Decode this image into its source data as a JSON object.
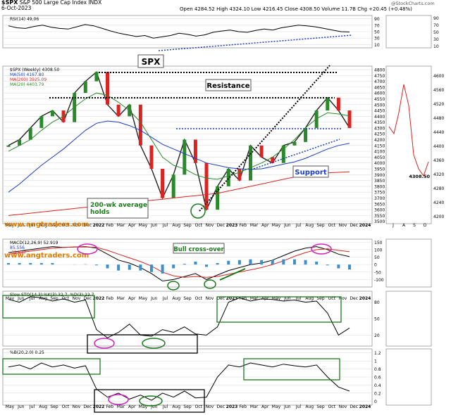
{
  "header": {
    "symbol": "$SPX",
    "name": "S&P 500 Large Cap Index",
    "exchange": "INDX",
    "date": "6-Oct-2023",
    "open": "Open 4284.52",
    "high": "High 4324.10",
    "low": "Low 4216.45",
    "close": "Close 4308.50",
    "volume": "Volume 11.7B",
    "change": "Chg +20.45 (+0.48%)",
    "watermark": "@StockCharts.com"
  },
  "annotations": {
    "spx": "SPX",
    "resistance": "Resistance",
    "support": "Support",
    "hold": "200-wk average\nholds",
    "bull": "Bull cross-over",
    "site": "www.angtraders.com",
    "site2": "www.angtraders.com"
  },
  "chart_data": [
    {
      "type": "line",
      "panel": "RSI",
      "legend": "RSI(14) 49.06",
      "y_ticks": [
        90,
        70,
        50,
        30,
        10
      ],
      "ylim": [
        0,
        100
      ],
      "series": [
        {
          "name": "RSI(14)",
          "values": [
            68,
            62,
            60,
            66,
            70,
            64,
            60,
            58,
            65,
            72,
            68,
            60,
            52,
            45,
            40,
            35,
            38,
            30,
            34,
            38,
            45,
            42,
            36,
            40,
            48,
            52,
            55,
            50,
            48,
            54,
            58,
            55,
            62,
            66,
            70,
            68,
            65,
            60,
            55,
            50,
            49
          ]
        }
      ]
    },
    {
      "type": "line",
      "panel": "Price (Weekly)",
      "legend": [
        "$SPX (Weekly) 4308.50",
        "MA(50) 4167.80",
        "MA(200) 3925.09",
        "MA(20) 4403.79"
      ],
      "y_ticks": [
        4800,
        4750,
        4700,
        4650,
        4600,
        4550,
        4500,
        4450,
        4400,
        4350,
        4300,
        4250,
        4200,
        4150,
        4100,
        4050,
        4000,
        3950,
        3900,
        3850,
        3800,
        3750,
        3700,
        3650,
        3600,
        3550,
        3500
      ],
      "ylim": [
        3480,
        4830
      ],
      "x_labels": [
        "May",
        "Jun",
        "Jul",
        "Aug",
        "Sep",
        "Oct",
        "Nov",
        "Dec",
        "2022",
        "Feb",
        "Mar",
        "Apr",
        "May",
        "Jun",
        "Jul",
        "Aug",
        "Sep",
        "Oct",
        "Nov",
        "Dec",
        "2023",
        "Feb",
        "Mar",
        "Apr",
        "May",
        "Jun",
        "Jul",
        "Aug",
        "Sep",
        "Oct",
        "Nov",
        "Dec",
        "2024"
      ],
      "series": [
        {
          "name": "$SPX",
          "values": [
            4150,
            4200,
            4300,
            4400,
            4450,
            4350,
            4600,
            4700,
            4780,
            4500,
            4400,
            4500,
            4150,
            3950,
            3700,
            3900,
            4200,
            4000,
            3600,
            3800,
            3950,
            3850,
            4150,
            4050,
            4000,
            4150,
            4180,
            4300,
            4450,
            4560,
            4450,
            4300
          ]
        },
        {
          "name": "MA(50)",
          "values": [
            3750,
            3820,
            3900,
            3980,
            4050,
            4120,
            4200,
            4280,
            4340,
            4360,
            4350,
            4320,
            4280,
            4220,
            4160,
            4120,
            4080,
            4040,
            4000,
            3980,
            3960,
            3950,
            3945,
            3950,
            3970,
            3990,
            4010,
            4040,
            4080,
            4120,
            4150,
            4168
          ]
        },
        {
          "name": "MA(200)",
          "values": [
            3550,
            3560,
            3570,
            3580,
            3590,
            3600,
            3610,
            3620,
            3630,
            3640,
            3650,
            3660,
            3670,
            3680,
            3690,
            3700,
            3710,
            3720,
            3730,
            3740,
            3760,
            3780,
            3800,
            3820,
            3840,
            3860,
            3880,
            3895,
            3905,
            3915,
            3920,
            3925
          ]
        },
        {
          "name": "MA(20)",
          "values": [
            4100,
            4150,
            4200,
            4280,
            4350,
            4400,
            4480,
            4550,
            4600,
            4580,
            4520,
            4450,
            4350,
            4200,
            4050,
            3980,
            3950,
            3900,
            3870,
            3860,
            3890,
            3920,
            3960,
            4000,
            4050,
            4120,
            4200,
            4300,
            4380,
            4430,
            4420,
            4404
          ]
        }
      ]
    },
    {
      "type": "line",
      "panel": "MACD",
      "legend": [
        "MACD(12,26,9) 52.919",
        "85.556",
        "-32.637"
      ],
      "y_ticks": [
        150,
        100,
        50,
        0,
        -50,
        -100
      ],
      "ylim": [
        -150,
        170
      ],
      "series": [
        {
          "name": "MACD",
          "values": [
            80,
            90,
            100,
            110,
            120,
            115,
            118,
            120,
            110,
            70,
            30,
            10,
            -20,
            -60,
            -110,
            -100,
            -80,
            -60,
            -100,
            -70,
            -40,
            -20,
            0,
            10,
            30,
            60,
            90,
            110,
            120,
            100,
            70,
            53
          ]
        },
        {
          "name": "Signal",
          "values": [
            70,
            80,
            90,
            100,
            110,
            115,
            117,
            118,
            115,
            95,
            70,
            45,
            20,
            -10,
            -50,
            -75,
            -85,
            -80,
            -85,
            -80,
            -65,
            -50,
            -35,
            -20,
            0,
            25,
            55,
            80,
            100,
            105,
            95,
            86
          ]
        }
      ]
    },
    {
      "type": "line",
      "panel": "Stochastic",
      "legend": "Slow STO(14,3) %K(3) 32.7, %D(3) 22.7",
      "y_ticks": [
        80,
        50,
        20
      ],
      "ylim": [
        0,
        100
      ],
      "series": [
        {
          "name": "%K",
          "values": [
            85,
            80,
            90,
            88,
            82,
            86,
            80,
            84,
            30,
            15,
            25,
            40,
            20,
            18,
            30,
            25,
            35,
            22,
            20,
            35,
            80,
            88,
            82,
            86,
            85,
            82,
            84,
            80,
            82,
            60,
            20,
            33
          ]
        }
      ]
    },
    {
      "type": "line",
      "panel": "%B",
      "legend": "%B(20,2.0) 0.25",
      "y_ticks": [
        1.2,
        1.0,
        0.8,
        0.6,
        0.4,
        0.2,
        0.0
      ],
      "ylim": [
        -0.1,
        1.3
      ],
      "series": [
        {
          "name": "%B",
          "values": [
            0.85,
            0.9,
            0.8,
            0.95,
            0.85,
            0.9,
            0.82,
            0.88,
            0.3,
            0.1,
            0.2,
            0.05,
            0.15,
            0.02,
            0.2,
            0.1,
            0.25,
            0.08,
            0.1,
            0.6,
            0.9,
            0.85,
            0.95,
            0.9,
            0.85,
            0.92,
            0.88,
            0.85,
            0.9,
            0.6,
            0.35,
            0.25
          ]
        }
      ]
    }
  ],
  "side": {
    "rsi_ticks": [
      90,
      70,
      50,
      30,
      10
    ],
    "price_ticks": [
      4600,
      4560,
      4520,
      4480,
      4440,
      4400,
      4360,
      4320,
      4280,
      4240,
      4200
    ],
    "price_last": "4308.50",
    "months": [
      "J",
      "A",
      "S",
      "O"
    ]
  }
}
